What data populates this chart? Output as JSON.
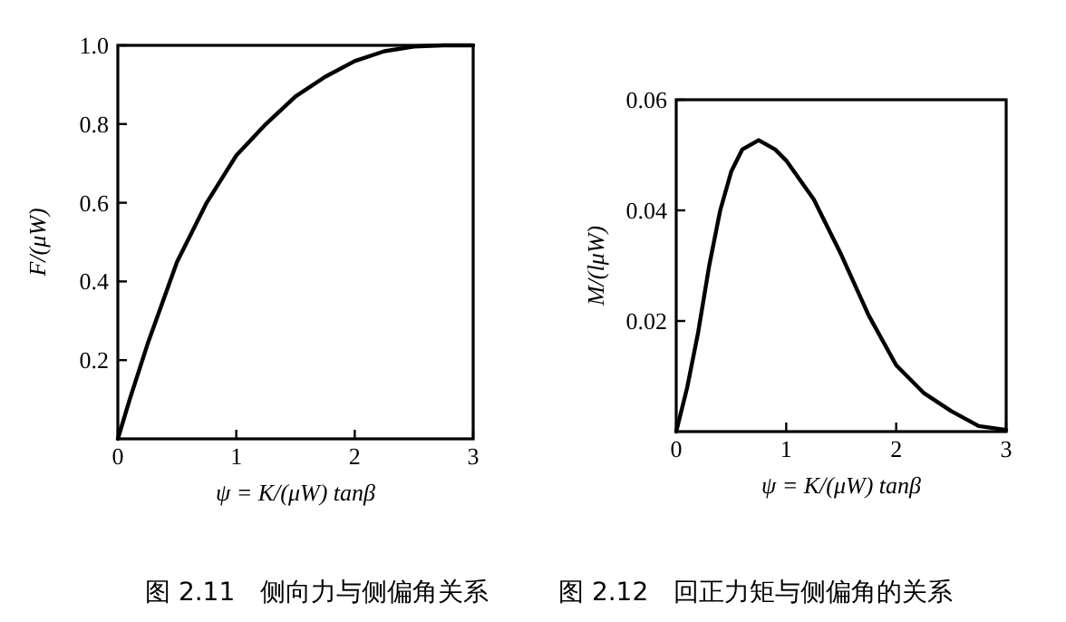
{
  "chart_data": [
    {
      "type": "line",
      "title": "图 2.11　侧向力与侧偏角关系",
      "xlabel": "ψ = K/(μW) tanβ",
      "ylabel": "F/(μW)",
      "xlim": [
        0,
        3
      ],
      "ylim": [
        0,
        1
      ],
      "xticks": [
        0,
        1,
        2,
        3
      ],
      "yticks": [
        0.2,
        0.4,
        0.6,
        0.8,
        {
          "value": 1,
          "label": "1.0"
        }
      ],
      "series": [
        {
          "color": "#000000",
          "x": [
            0,
            0.1,
            0.25,
            0.5,
            0.75,
            1,
            1.25,
            1.5,
            1.75,
            2,
            2.25,
            2.5,
            2.75,
            3
          ],
          "values": [
            0,
            0.1,
            0.24,
            0.45,
            0.6,
            0.72,
            0.8,
            0.87,
            0.92,
            0.96,
            0.985,
            0.997,
            1,
            1
          ]
        }
      ]
    },
    {
      "type": "line",
      "title": "图 2.12　回正力矩与侧偏角的关系",
      "xlabel": "ψ = K/(μW) tanβ",
      "ylabel": "M/(lμW)",
      "xlim": [
        0,
        3
      ],
      "ylim": [
        0,
        0.06
      ],
      "xticks": [
        0,
        1,
        2,
        3
      ],
      "yticks": [
        0.02,
        0.04,
        0.06
      ],
      "series": [
        {
          "color": "#000000",
          "x": [
            0,
            0.1,
            0.2,
            0.3,
            0.4,
            0.5,
            0.6,
            0.75,
            0.9,
            1,
            1.25,
            1.5,
            1.75,
            2,
            2.25,
            2.5,
            2.75,
            3
          ],
          "values": [
            0,
            0.008,
            0.018,
            0.03,
            0.04,
            0.047,
            0.051,
            0.0527,
            0.051,
            0.049,
            0.042,
            0.032,
            0.021,
            0.012,
            0.007,
            0.0037,
            0.001,
            0.0003
          ]
        }
      ]
    }
  ]
}
